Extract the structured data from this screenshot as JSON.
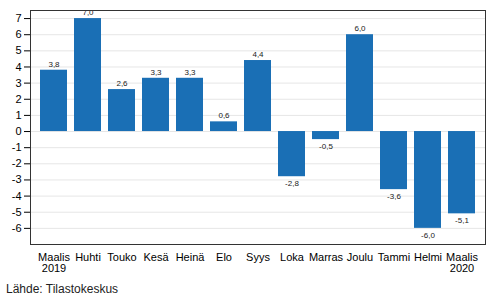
{
  "chart_data": {
    "type": "bar",
    "categories": [
      "Maalis\n2019",
      "Huhti",
      "Touko",
      "Kesä",
      "Heinä",
      "Elo",
      "Syys",
      "Loka",
      "Marras",
      "Joulu",
      "Tammi",
      "Helmi",
      "Maalis\n2020"
    ],
    "values": [
      3.8,
      7.0,
      2.6,
      3.3,
      3.3,
      0.6,
      4.4,
      -2.8,
      -0.5,
      6.0,
      -3.6,
      -6.0,
      -5.1
    ],
    "value_labels": [
      "3,8",
      "7,0",
      "2,6",
      "3,3",
      "3,3",
      "0,6",
      "4,4",
      "-2,8",
      "-0,5",
      "6,0",
      "-3,6",
      "-6,0",
      "-5,1"
    ],
    "color": "#1a6fb5",
    "ylim": [
      -7,
      7.5
    ],
    "yticks": [
      -6,
      -5,
      -4,
      -3,
      -2,
      -1,
      0,
      1,
      2,
      3,
      4,
      5,
      6,
      7
    ],
    "grid": true,
    "data_labels": true,
    "caption": "Lähde: Tilastokeskus"
  }
}
